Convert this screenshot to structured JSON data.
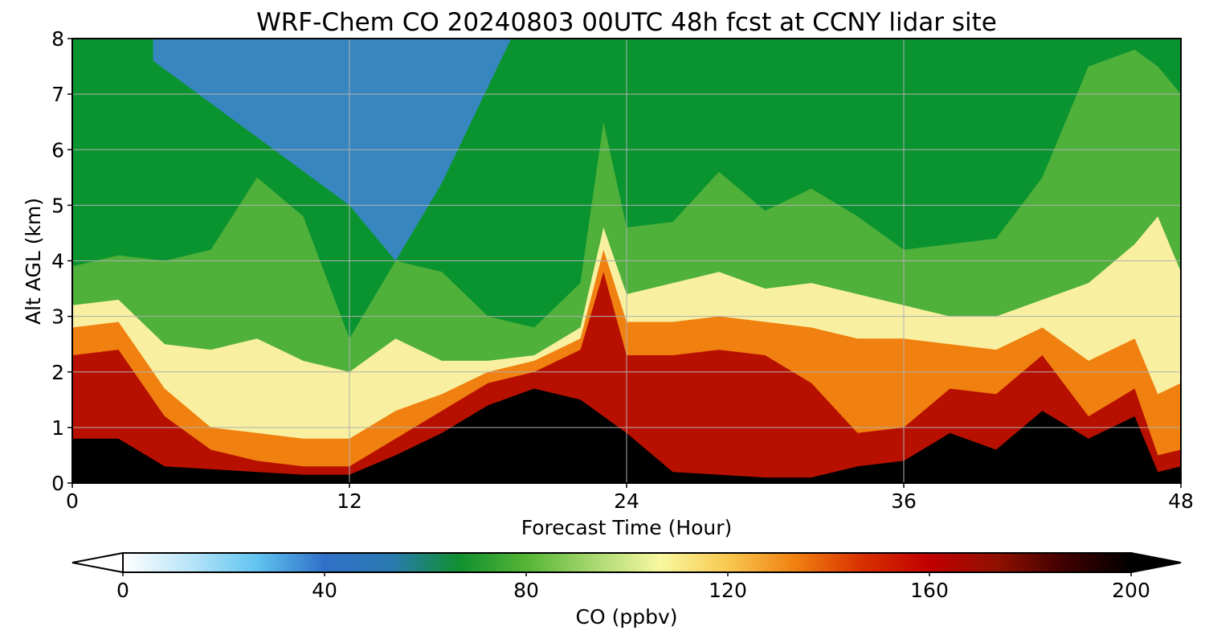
{
  "chart_data": {
    "type": "heatmap",
    "title": "WRF-Chem CO  20240803 00UTC 48h fcst at CCNY lidar site",
    "xlabel": "Forecast Time (Hour)",
    "ylabel": "Alt AGL (km)",
    "xlim": [
      0,
      48
    ],
    "ylim": [
      0,
      8
    ],
    "x_ticks": [
      0,
      12,
      24,
      36,
      48
    ],
    "y_ticks": [
      0,
      1,
      2,
      3,
      4,
      5,
      6,
      7,
      8
    ],
    "grid": true,
    "colorbar": {
      "label": "CO  (ppbv)",
      "min": 0,
      "max": 200,
      "ticks": [
        0,
        40,
        80,
        120,
        160,
        200
      ],
      "extend": "both",
      "colors": [
        "#ffffff",
        "#b8e4f8",
        "#60c4f0",
        "#3070c8",
        "#2a7ab0",
        "#109030",
        "#55b535",
        "#a8d870",
        "#f8f8a0",
        "#f8c850",
        "#f08010",
        "#d83000",
        "#c00000",
        "#901000",
        "#400000",
        "#000000"
      ]
    },
    "series": [
      {
        "x": 0,
        "altitudes_km": {
          "black_top": 0.8,
          "red_top": 2.3,
          "orange_top": 2.8,
          "yellow_top": 3.2,
          "green_top": 3.9
        }
      },
      {
        "x": 2,
        "altitudes_km": {
          "black_top": 0.8,
          "red_top": 2.4,
          "orange_top": 2.9,
          "yellow_top": 3.3,
          "green_top": 4.1
        }
      },
      {
        "x": 4,
        "altitudes_km": {
          "black_top": 0.3,
          "red_top": 1.2,
          "orange_top": 1.7,
          "yellow_top": 2.5,
          "green_top": 4.0
        }
      },
      {
        "x": 6,
        "altitudes_km": {
          "black_top": 0.25,
          "red_top": 0.6,
          "orange_top": 1.0,
          "yellow_top": 2.4,
          "green_top": 4.2
        }
      },
      {
        "x": 8,
        "altitudes_km": {
          "black_top": 0.2,
          "red_top": 0.4,
          "orange_top": 0.9,
          "yellow_top": 2.6,
          "green_top": 5.5
        }
      },
      {
        "x": 10,
        "altitudes_km": {
          "black_top": 0.15,
          "red_top": 0.3,
          "orange_top": 0.8,
          "yellow_top": 2.2,
          "green_top": 4.8
        }
      },
      {
        "x": 12,
        "altitudes_km": {
          "black_top": 0.15,
          "red_top": 0.3,
          "orange_top": 0.8,
          "yellow_top": 2.0,
          "green_top": 2.6
        }
      },
      {
        "x": 14,
        "altitudes_km": {
          "black_top": 0.5,
          "red_top": 0.8,
          "orange_top": 1.3,
          "yellow_top": 2.6,
          "green_top": 4.0
        }
      },
      {
        "x": 16,
        "altitudes_km": {
          "black_top": 0.9,
          "red_top": 1.3,
          "orange_top": 1.6,
          "yellow_top": 2.2,
          "green_top": 3.8
        }
      },
      {
        "x": 18,
        "altitudes_km": {
          "black_top": 1.4,
          "red_top": 1.8,
          "orange_top": 2.0,
          "yellow_top": 2.2,
          "green_top": 3.0
        }
      },
      {
        "x": 20,
        "altitudes_km": {
          "black_top": 1.7,
          "red_top": 2.0,
          "orange_top": 2.2,
          "yellow_top": 2.3,
          "green_top": 2.8
        }
      },
      {
        "x": 22,
        "altitudes_km": {
          "black_top": 1.5,
          "red_top": 2.4,
          "orange_top": 2.6,
          "yellow_top": 2.8,
          "green_top": 3.6
        }
      },
      {
        "x": 23,
        "altitudes_km": {
          "black_top": 1.2,
          "red_top": 3.8,
          "orange_top": 4.2,
          "yellow_top": 4.6,
          "green_top": 6.5
        }
      },
      {
        "x": 24,
        "altitudes_km": {
          "black_top": 0.9,
          "red_top": 2.3,
          "orange_top": 2.9,
          "yellow_top": 3.4,
          "green_top": 4.6
        }
      },
      {
        "x": 26,
        "altitudes_km": {
          "black_top": 0.2,
          "red_top": 2.3,
          "orange_top": 2.9,
          "yellow_top": 3.6,
          "green_top": 4.7
        }
      },
      {
        "x": 28,
        "altitudes_km": {
          "black_top": 0.15,
          "red_top": 2.4,
          "orange_top": 3.0,
          "yellow_top": 3.8,
          "green_top": 5.6
        }
      },
      {
        "x": 30,
        "altitudes_km": {
          "black_top": 0.1,
          "red_top": 2.3,
          "orange_top": 2.9,
          "yellow_top": 3.5,
          "green_top": 4.9
        }
      },
      {
        "x": 32,
        "altitudes_km": {
          "black_top": 0.1,
          "red_top": 1.8,
          "orange_top": 2.8,
          "yellow_top": 3.6,
          "green_top": 5.3
        }
      },
      {
        "x": 34,
        "altitudes_km": {
          "black_top": 0.3,
          "red_top": 0.9,
          "orange_top": 2.6,
          "yellow_top": 3.4,
          "green_top": 4.8
        }
      },
      {
        "x": 36,
        "altitudes_km": {
          "black_top": 0.4,
          "red_top": 1.0,
          "orange_top": 2.6,
          "yellow_top": 3.2,
          "green_top": 4.2
        }
      },
      {
        "x": 38,
        "altitudes_km": {
          "black_top": 0.9,
          "red_top": 1.7,
          "orange_top": 2.5,
          "yellow_top": 3.0,
          "green_top": 4.3
        }
      },
      {
        "x": 40,
        "altitudes_km": {
          "black_top": 0.6,
          "red_top": 1.6,
          "orange_top": 2.4,
          "yellow_top": 3.0,
          "green_top": 4.4
        }
      },
      {
        "x": 42,
        "altitudes_km": {
          "black_top": 1.3,
          "red_top": 2.3,
          "orange_top": 2.8,
          "yellow_top": 3.3,
          "green_top": 5.5
        }
      },
      {
        "x": 44,
        "altitudes_km": {
          "black_top": 0.8,
          "red_top": 1.2,
          "orange_top": 2.2,
          "yellow_top": 3.6,
          "green_top": 7.5
        }
      },
      {
        "x": 46,
        "altitudes_km": {
          "black_top": 1.2,
          "red_top": 1.7,
          "orange_top": 2.6,
          "yellow_top": 4.3,
          "green_top": 7.8
        }
      },
      {
        "x": 47,
        "altitudes_km": {
          "black_top": 0.2,
          "red_top": 0.5,
          "orange_top": 1.6,
          "yellow_top": 4.8,
          "green_top": 7.5
        }
      },
      {
        "x": 48,
        "altitudes_km": {
          "black_top": 0.3,
          "red_top": 0.6,
          "orange_top": 1.8,
          "yellow_top": 3.8,
          "green_top": 7.0
        }
      }
    ],
    "band_colors": {
      "black": "#000000",
      "red": "#b81000",
      "orange": "#f08010",
      "yellow": "#f8f0a0",
      "green": "#4fb03a",
      "upper": "#0a9430",
      "blue": "#3f84d8"
    },
    "blue_patches": [
      {
        "x": [
          3.5,
          12,
          14,
          16,
          19
        ],
        "y_low": [
          7.6,
          5.0,
          4.0,
          5.4,
          8.0
        ],
        "y_high": [
          8,
          8,
          8,
          8,
          8
        ]
      }
    ]
  }
}
